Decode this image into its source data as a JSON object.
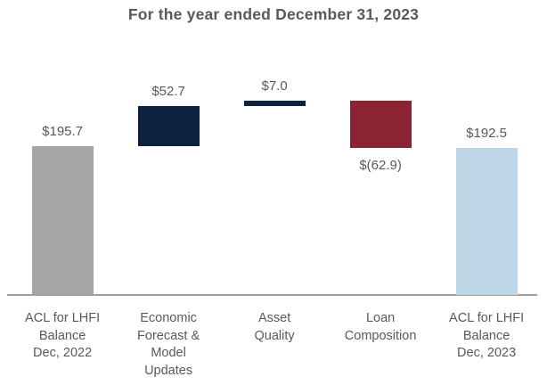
{
  "chart_data": {
    "type": "waterfall",
    "title": "For the year ended December 31, 2023",
    "xlabel": "",
    "ylabel": "",
    "ylim": [
      0,
      260
    ],
    "grid": false,
    "legend": false,
    "baseline_value": 0,
    "categories": [
      "ACL for LHFI Balance Dec, 2022",
      "Economic Forecast & Model Updates",
      "Asset Quality",
      "Loan Composition",
      "ACL for LHFI Balance Dec, 2023"
    ],
    "steps": [
      {
        "category": "ACL for LHFI Balance Dec, 2022",
        "category_lines": [
          "ACL for LHFI",
          "Balance",
          "Dec, 2022"
        ],
        "value": 195.7,
        "display": "$195.7",
        "kind": "total",
        "color": "#a6a6a6",
        "label_position": "above"
      },
      {
        "category": "Economic Forecast & Model Updates",
        "category_lines": [
          "Economic",
          "Forecast &",
          "Model",
          "Updates"
        ],
        "value": 52.7,
        "display": "$52.7",
        "kind": "increase",
        "color": "#0d2240",
        "label_position": "above"
      },
      {
        "category": "Asset Quality",
        "category_lines": [
          "Asset",
          "Quality"
        ],
        "value": 7.0,
        "display": "$7.0",
        "kind": "increase",
        "color": "#0d2240",
        "label_position": "above"
      },
      {
        "category": "Loan Composition",
        "category_lines": [
          "Loan",
          "Composition"
        ],
        "value": -62.9,
        "display": "$(62.9)",
        "kind": "decrease",
        "color": "#8b2332",
        "label_position": "below"
      },
      {
        "category": "ACL for LHFI Balance Dec, 2023",
        "category_lines": [
          "ACL for LHFI",
          "Balance",
          "Dec, 2023"
        ],
        "value": 192.5,
        "display": "$192.5",
        "kind": "total",
        "color": "#bdd7e6",
        "label_position": "above"
      }
    ],
    "colors": {
      "start_end_total_gray": "#a6a6a6",
      "increase_navy": "#0d2240",
      "decrease_red": "#8b2332",
      "end_total_light_blue": "#bdd7e6",
      "text": "#595959",
      "axis_line": "#9f9f9f"
    }
  }
}
